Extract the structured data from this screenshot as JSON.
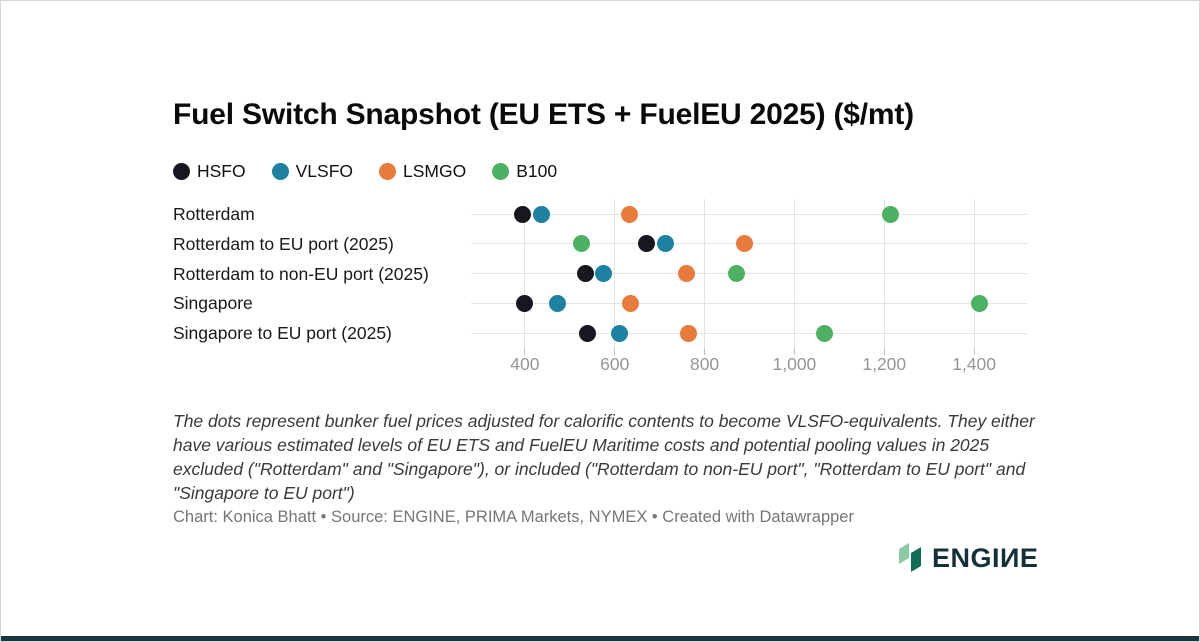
{
  "header": {
    "title": "Fuel Switch Snapshot (EU ETS + FuelEU 2025) ($/mt)"
  },
  "legend": {
    "items": [
      {
        "label": "HSFO",
        "color": "#17171f"
      },
      {
        "label": "VLSFO",
        "color": "#1d81a2"
      },
      {
        "label": "LSMGO",
        "color": "#e87a3c"
      },
      {
        "label": "B100",
        "color": "#4db163"
      }
    ]
  },
  "chart_data": {
    "type": "scatter",
    "title": "Fuel Switch Snapshot (EU ETS + FuelEU 2025) ($/mt)",
    "unit": "$/mt",
    "categories": [
      "Rotterdam",
      "Rotterdam to EU port (2025)",
      "Rotterdam to non-EU port (2025)",
      "Singapore",
      "Singapore to EU port (2025)"
    ],
    "series": [
      {
        "name": "HSFO",
        "color": "#17171f",
        "values": [
          395,
          670,
          535,
          400,
          540
        ]
      },
      {
        "name": "VLSFO",
        "color": "#1d81a2",
        "values": [
          437,
          713,
          575,
          472,
          611
        ]
      },
      {
        "name": "LSMGO",
        "color": "#e87a3c",
        "values": [
          633,
          889,
          760,
          635,
          764
        ]
      },
      {
        "name": "B100",
        "color": "#4db163",
        "values": [
          1215,
          525,
          870,
          1412,
          1066
        ]
      }
    ],
    "x_ticks": [
      {
        "value": 400,
        "label": "400"
      },
      {
        "value": 600,
        "label": "600"
      },
      {
        "value": 800,
        "label": "800"
      },
      {
        "value": 1000,
        "label": "1,000"
      },
      {
        "value": 1200,
        "label": "1,200"
      },
      {
        "value": 1400,
        "label": "1,400"
      }
    ],
    "xlim": [
      280,
      1520
    ],
    "xlabel": "",
    "ylabel": "",
    "grid": true,
    "legend_position": "top"
  },
  "notes": {
    "description": "The dots represent bunker fuel prices adjusted for calorific contents to become VLSFO-equivalents. They either have various estimated levels of EU ETS and FuelEU Maritime costs and potential pooling values in 2025 excluded (\"Rotterdam\" and \"Singapore\"), or included (\"Rotterdam to non-EU port\", \"Rotterdam to EU port\" and \"Singapore to EU port\")",
    "credit": "Chart: Konica Bhatt • Source: ENGINE, PRIMA Markets, NYMEX • Created with Datawrapper"
  },
  "logo": {
    "text": "ENGIИE",
    "icon_colors": [
      "#8cc9a4",
      "#0f6e55"
    ]
  }
}
